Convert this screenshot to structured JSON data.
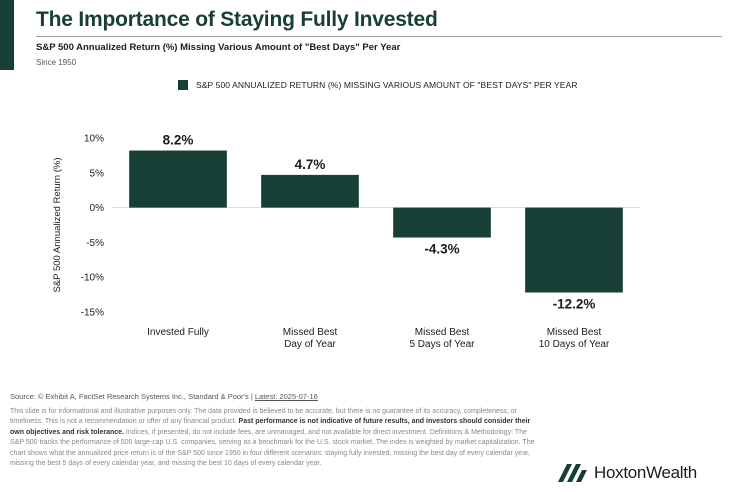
{
  "header": {
    "title": "The Importance of Staying Fully Invested",
    "subtitle": "S&P 500 Annualized Return (%) Missing Various Amount of \"Best Days\" Per Year",
    "since": "Since 1950"
  },
  "colors": {
    "accent": "#173f35",
    "text": "#1c1c1c"
  },
  "chart_data": {
    "type": "bar",
    "title": "",
    "legend": {
      "label": "S&P 500 ANNUALIZED RETURN (%) MISSING VARIOUS AMOUNT OF \"BEST DAYS\" PER YEAR",
      "position": "top"
    },
    "ylabel": "S&P 500 Annualized Return (%)",
    "ylim": [
      -15,
      10
    ],
    "yticks": [
      10,
      5,
      0,
      -5,
      -10,
      -15
    ],
    "ytick_labels": [
      "10%",
      "5%",
      "0%",
      "-5%",
      "-10%",
      "-15%"
    ],
    "grid": false,
    "categories": [
      [
        "Invested Fully"
      ],
      [
        "Missed Best",
        "Day of Year"
      ],
      [
        "Missed Best",
        "5 Days of Year"
      ],
      [
        "Missed Best",
        "10 Days of Year"
      ]
    ],
    "values": [
      8.2,
      4.7,
      -4.3,
      -12.2
    ],
    "value_labels": [
      "8.2%",
      "4.7%",
      "-4.3%",
      "-12.2%"
    ],
    "bar_color": "#173f35"
  },
  "footer": {
    "source_prefix": "Source: © Exhibit A, FactSet Research Systems Inc., Standard & Poor's | ",
    "latest": "Latest: 2025-07-16",
    "disclaimer_1": "This slide is for informational and illustrative purposes only. The data provided is believed to be accurate, but there is no guarantee of its accuracy, completeness, or timeliness. This is not a recommendation or offer of any financial product. ",
    "disclaimer_bold": "Past performance is not indicative of future results, and investors should consider their own objectives and risk tolerance.",
    "disclaimer_2": " Indices, if presented, do not include fees, are unmanaged, and not available for direct investment. Definitions & Methodology: The S&P 500 tracks the performance of 500 large-cap U.S. companies, serving as a benchmark for the U.S. stock market. The index is weighted by market capitalization. The chart shows what the annualized price return is of the S&P 500 since 1950 in four different scenarios: staying fully invested, missing the best day of every calendar year, missing the best 5 days of every calendar year, and missing the best 10 days of every calendar year."
  },
  "brand": {
    "name": "HoxtonWealth",
    "logo_icon": "hoxton-logo-icon"
  }
}
